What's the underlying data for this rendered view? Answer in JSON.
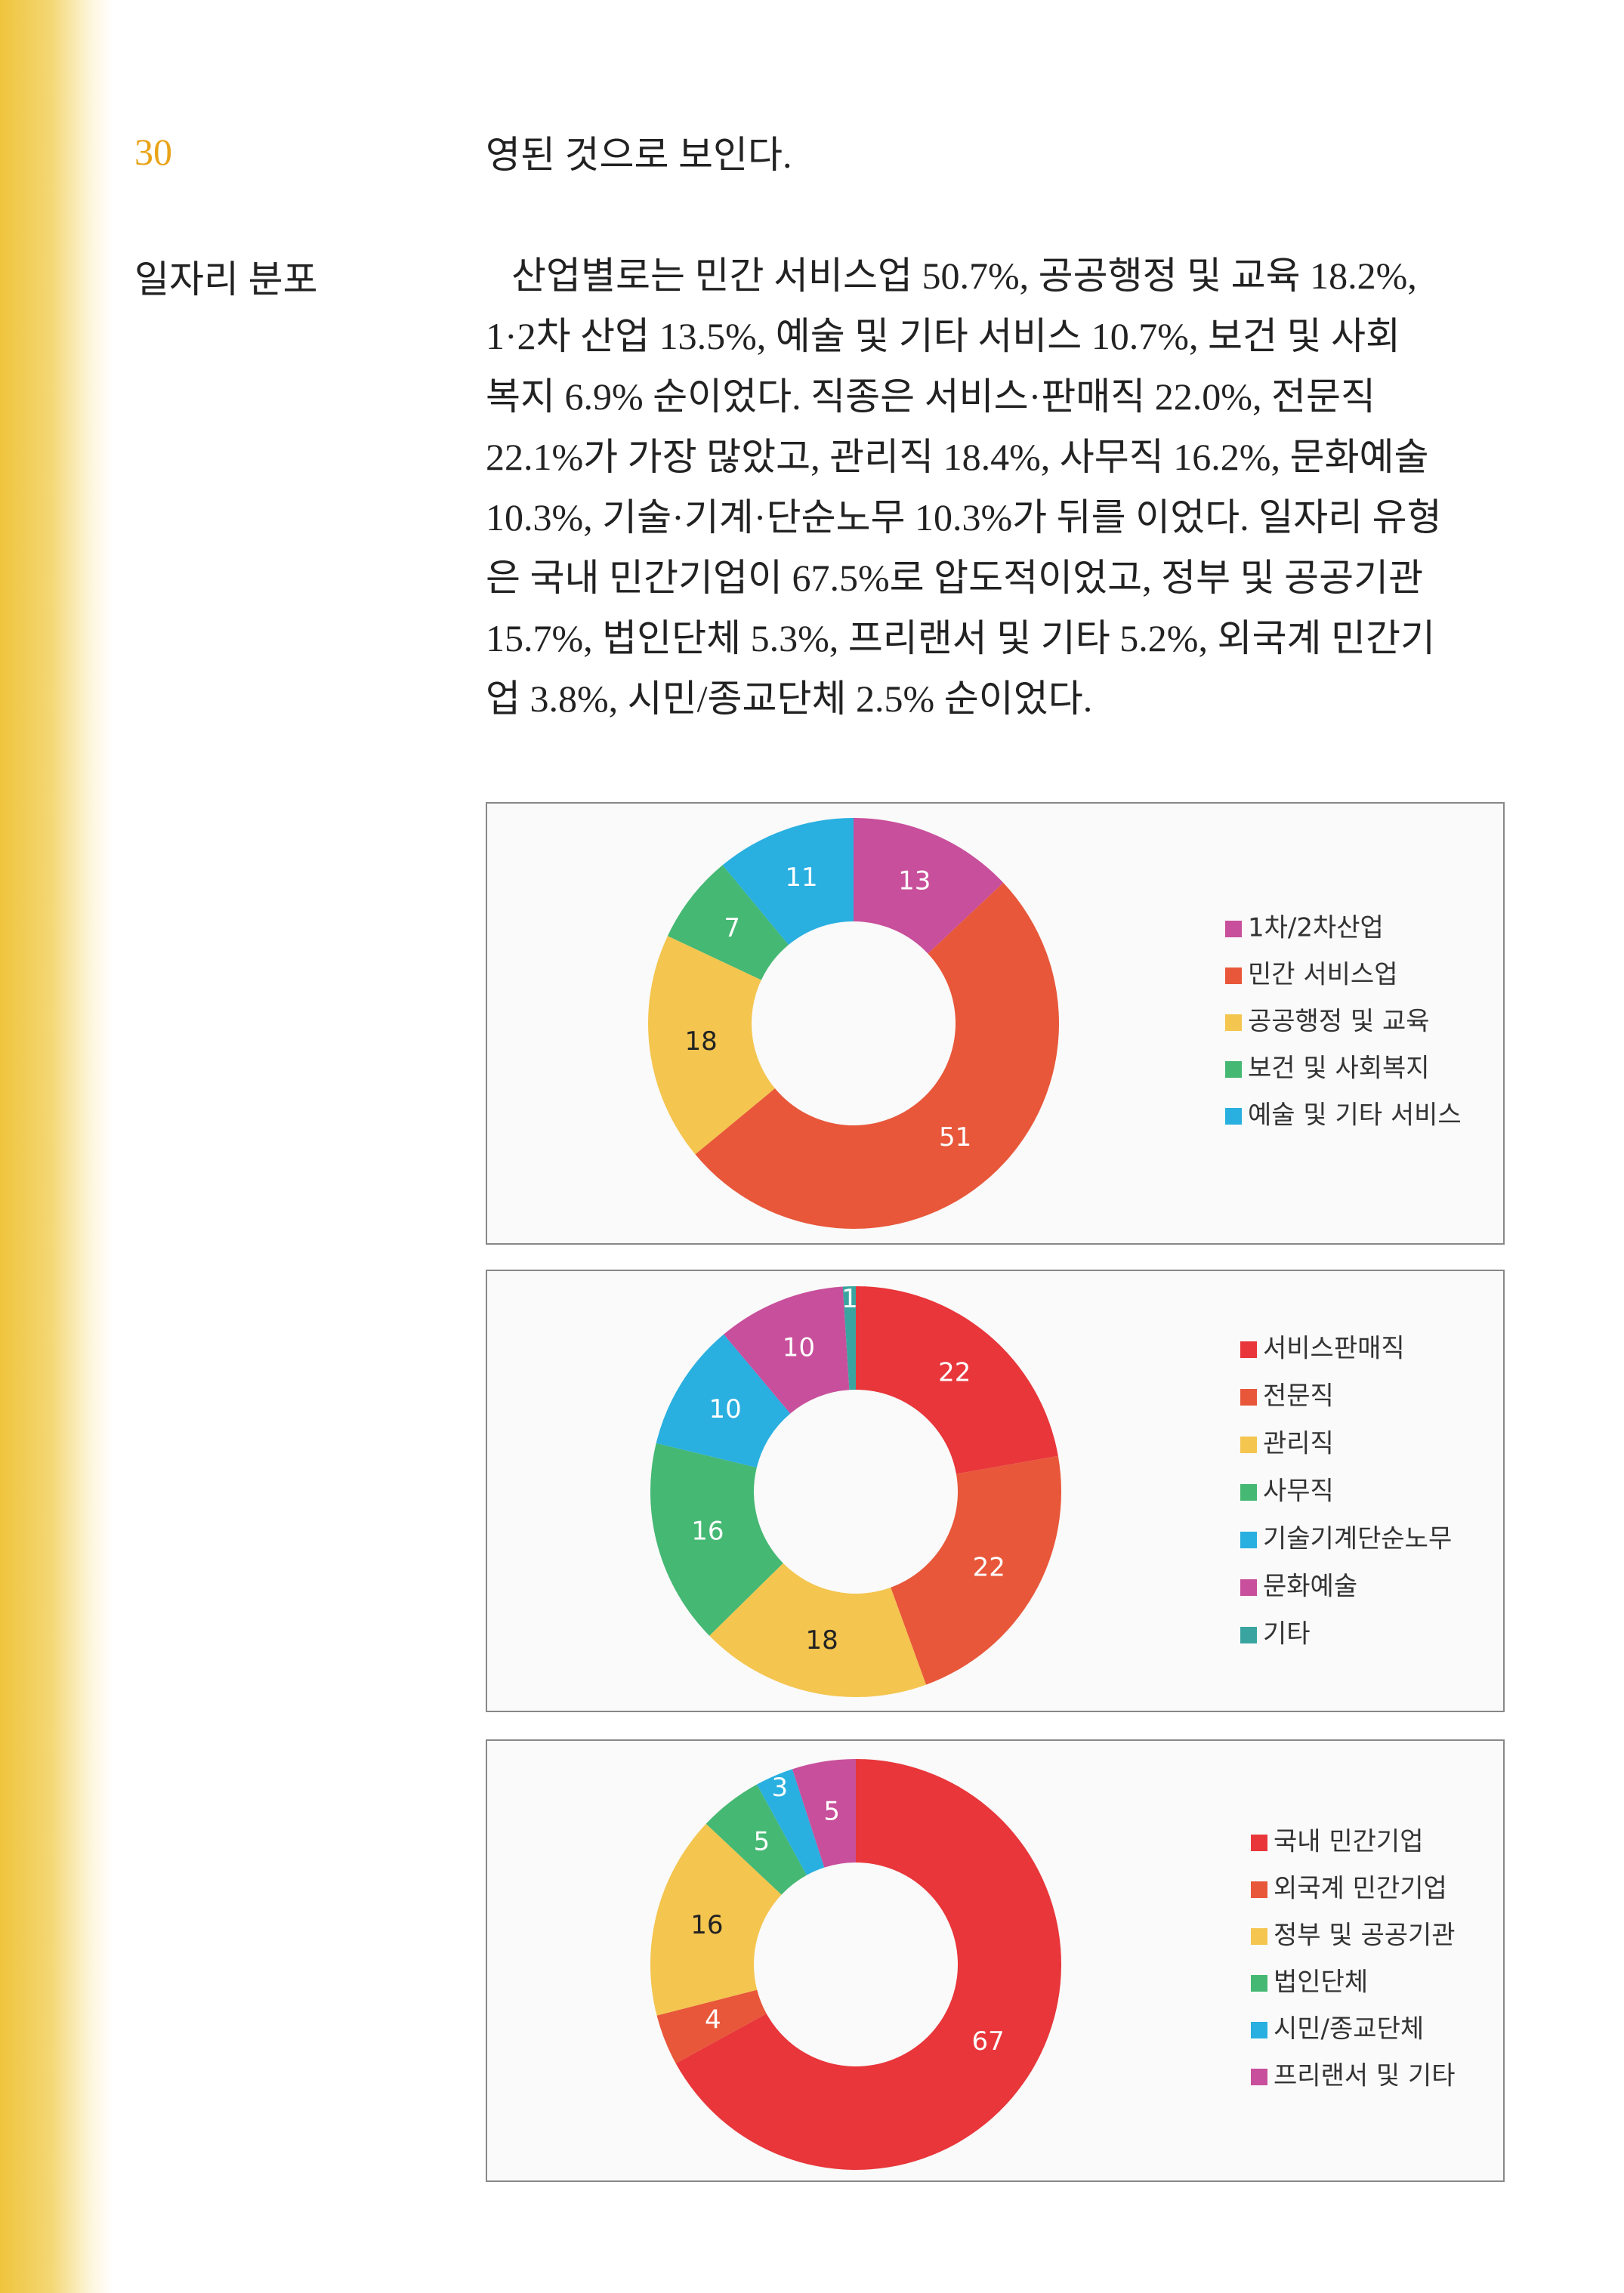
{
  "page_number": "30",
  "sidebar_heading": "일자리 분포",
  "body": {
    "continued_line": "영된 것으로 보인다.",
    "paragraph_lines": [
      "산업별로는 민간 서비스업 50.7%, 공공행정 및 교육 18.2%,",
      "1·2차 산업 13.5%, 예술 및 기타 서비스 10.7%, 보건 및 사회",
      "복지 6.9% 순이었다. 직종은 서비스·판매직 22.0%, 전문직",
      "22.1%가 가장 많았고, 관리직 18.4%, 사무직 16.2%, 문화예술",
      "10.3%, 기술·기계·단순노무 10.3%가 뒤를 이었다. 일자리 유형",
      "은 국내 민간기업이 67.5%로 압도적이었고, 정부 및 공공기관",
      "15.7%, 법인단체 5.3%, 프리랜서 및 기타 5.2%, 외국계 민간기",
      "업 3.8%, 시민/종교단체 2.5% 순이었다."
    ]
  },
  "chart_data": [
    {
      "type": "donut",
      "categories": [
        "1차/2차산업",
        "민간 서비스업",
        "공공행정 및 교육",
        "보건 및 사회복지",
        "예술 및 기타 서비스"
      ],
      "values": [
        13,
        51,
        18,
        7,
        11
      ],
      "colors": [
        "#c84f9b",
        "#e8573a",
        "#f4c54f",
        "#45b873",
        "#29afe0"
      ],
      "legend": "right"
    },
    {
      "type": "donut",
      "categories": [
        "서비스판매직",
        "전문직",
        "관리직",
        "사무직",
        "기술기계단순노무",
        "문화예술",
        "기타"
      ],
      "values": [
        22,
        22,
        18,
        16,
        10,
        10,
        1
      ],
      "colors": [
        "#e8363a",
        "#e8573a",
        "#f4c54f",
        "#45b873",
        "#29afe0",
        "#c84f9b",
        "#3aa5a0"
      ],
      "legend": "right"
    },
    {
      "type": "donut",
      "categories": [
        "국내 민간기업",
        "외국계 민간기업",
        "정부 및 공공기관",
        "법인단체",
        "시민/종교단체",
        "프리랜서 및 기타"
      ],
      "values": [
        67,
        4,
        16,
        5,
        3,
        5
      ],
      "colors": [
        "#e8363a",
        "#e8573a",
        "#f4c54f",
        "#45b873",
        "#29afe0",
        "#c84f9b"
      ],
      "legend": "right"
    }
  ]
}
